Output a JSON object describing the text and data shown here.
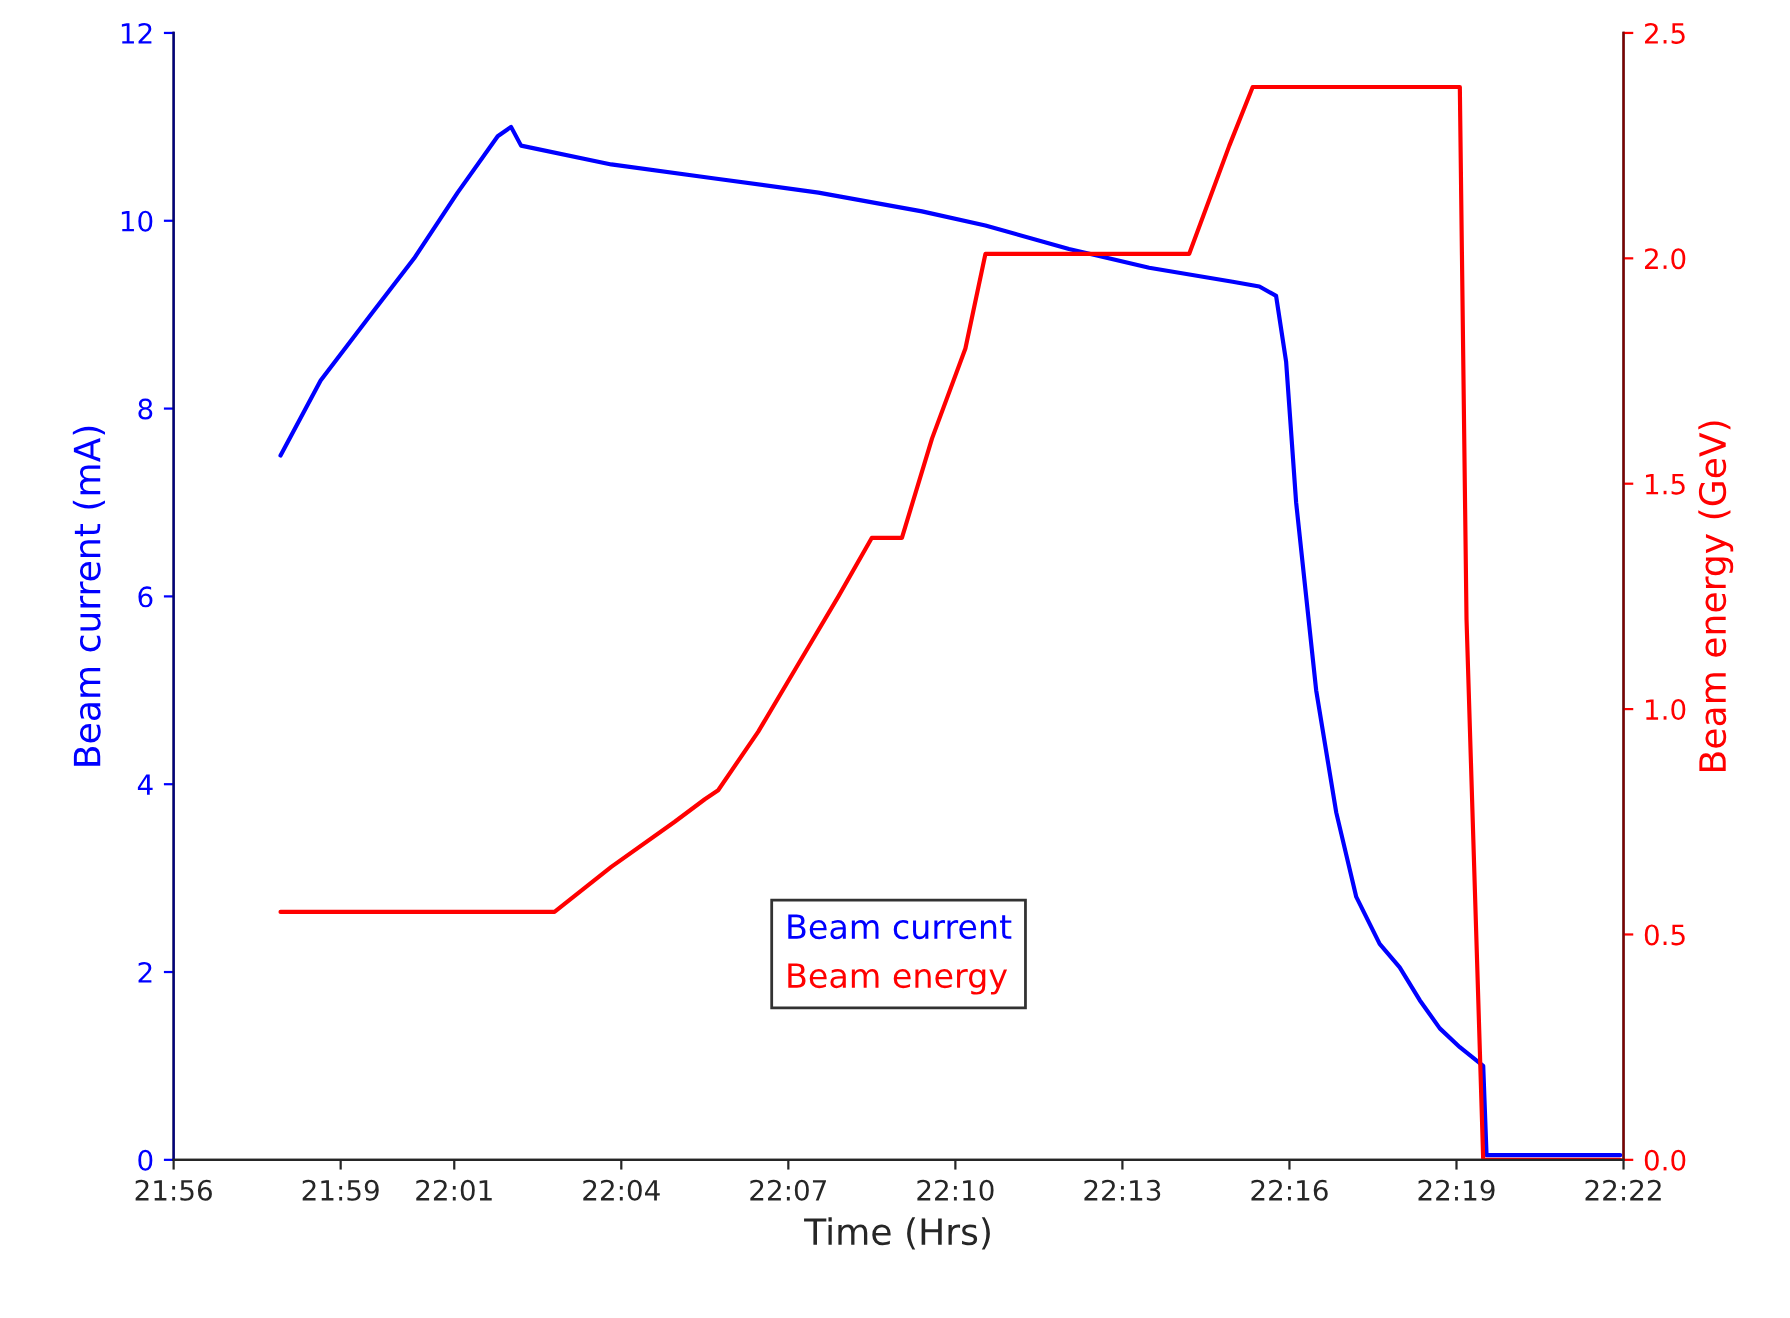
{
  "chart_data": {
    "type": "line",
    "xlabel": "Time (Hrs)",
    "ylabel": "Beam current (mA)",
    "y2label": "Beam energy (GeV)",
    "xlim": [
      21.933,
      22.367
    ],
    "xticks": [
      {
        "value": 21.933,
        "label": "21:56"
      },
      {
        "value": 21.983,
        "label": "21:59"
      },
      {
        "value": 22.017,
        "label": "22:01"
      },
      {
        "value": 22.067,
        "label": "22:04"
      },
      {
        "value": 22.117,
        "label": "22:07"
      },
      {
        "value": 22.167,
        "label": "22:10"
      },
      {
        "value": 22.217,
        "label": "22:13"
      },
      {
        "value": 22.267,
        "label": "22:16"
      },
      {
        "value": 22.317,
        "label": "22:19"
      },
      {
        "value": 22.367,
        "label": "22:22"
      }
    ],
    "ylim": [
      0,
      12
    ],
    "yticks": [
      0,
      2,
      4,
      6,
      8,
      10,
      12
    ],
    "y2lim": [
      0,
      2.5
    ],
    "y2ticks": [
      {
        "value": 0,
        "label": "0.0"
      },
      {
        "value": 0.5,
        "label": "0.5"
      },
      {
        "value": 1,
        "label": "1.0"
      },
      {
        "value": 1.5,
        "label": "1.5"
      },
      {
        "value": 2,
        "label": "2.0"
      },
      {
        "value": 2.5,
        "label": "2.5"
      }
    ],
    "grid": false,
    "legend": "bottom",
    "marker": "none",
    "line_style": "solid",
    "series": [
      {
        "name": "Beam current",
        "color": "#0000ff",
        "x": [
          21.965,
          21.977,
          21.992,
          22.005,
          22.018,
          22.03,
          22.034,
          22.037,
          22.064,
          22.095,
          22.126,
          22.157,
          22.176,
          22.201,
          22.225,
          22.25,
          22.258,
          22.263,
          22.266,
          22.269,
          22.275,
          22.281,
          22.287,
          22.294,
          22.3,
          22.306,
          22.312,
          22.318,
          22.325,
          22.326,
          22.366
        ],
        "values": [
          7.5,
          8.3,
          9.0,
          9.6,
          10.3,
          10.9,
          11.0,
          10.8,
          10.6,
          10.45,
          10.3,
          10.1,
          9.95,
          9.7,
          9.5,
          9.35,
          9.3,
          9.2,
          8.5,
          7.0,
          5.0,
          3.7,
          2.8,
          2.3,
          2.05,
          1.7,
          1.4,
          1.2,
          1.0,
          0.05,
          0.05
        ]
      },
      {
        "name": "Beam energy",
        "color": "#ff0000",
        "axis": "y2",
        "x": [
          21.965,
          22.047,
          22.064,
          22.083,
          22.092,
          22.096,
          22.108,
          22.12,
          22.132,
          22.142,
          22.151,
          22.16,
          22.17,
          22.176,
          22.237,
          22.249,
          22.256,
          22.318,
          22.32,
          22.325,
          22.366
        ],
        "values": [
          0.55,
          0.55,
          0.65,
          0.75,
          0.8,
          0.82,
          0.95,
          1.1,
          1.25,
          1.38,
          1.38,
          1.6,
          1.8,
          2.01,
          2.01,
          2.25,
          2.38,
          2.38,
          1.2,
          0,
          0
        ]
      }
    ]
  }
}
